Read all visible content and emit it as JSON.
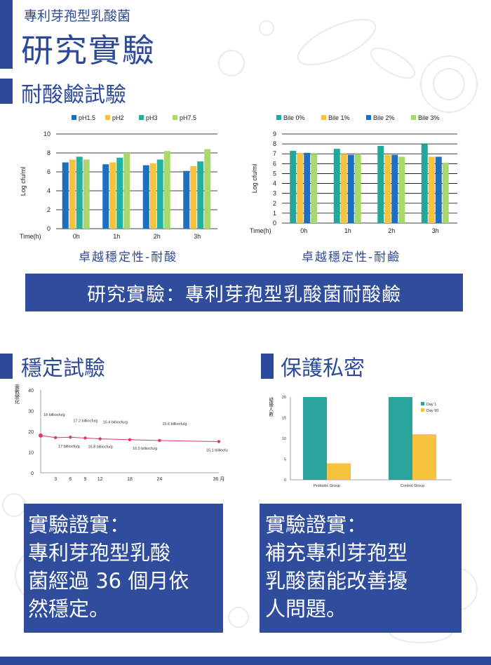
{
  "header": {
    "subtitle": "專利芽孢型乳酸菌",
    "title": "研究實驗"
  },
  "section_acid": {
    "heading": "耐酸鹼試驗",
    "caption_acid": "卓越穩定性-耐酸",
    "caption_bile": "卓越穩定性-耐鹼",
    "banner": "研究實驗：專利芽孢型乳酸菌耐酸鹼"
  },
  "section_stability": {
    "heading": "穩定試驗",
    "proof_title": "實驗證實：",
    "proof_lines": [
      "專利芽孢型乳酸",
      "菌經過 36 個月依",
      "然穩定。"
    ]
  },
  "section_privacy": {
    "heading": "保護私密",
    "proof_title": "實驗證實：",
    "proof_lines": [
      "補充專利芽孢型",
      "乳酸菌能改善擾",
      "人問題。"
    ]
  },
  "colors": {
    "brand_blue": "#2c4a99",
    "ph15": "#1f6fc0",
    "ph2": "#f5c242",
    "ph3": "#22b0a0",
    "ph75": "#a8d86e",
    "stability_line": "#e0395a",
    "day1": "#2aa39a",
    "day90": "#f7c23e"
  },
  "chart_data": [
    {
      "type": "bar",
      "ylabel": "Log cfu/ml",
      "xlabel": "Time(h)",
      "categories": [
        "0h",
        "1h",
        "2h",
        "3h"
      ],
      "ylim": [
        0,
        10
      ],
      "yticks": [
        0,
        2,
        4,
        6,
        8,
        10
      ],
      "grid": true,
      "legend": "top",
      "series": [
        {
          "name": "pH1.5",
          "values": [
            7.0,
            6.8,
            6.7,
            6.1
          ]
        },
        {
          "name": "pH2",
          "values": [
            7.3,
            7.0,
            6.9,
            6.6
          ]
        },
        {
          "name": "pH3",
          "values": [
            7.6,
            7.5,
            7.3,
            7.1
          ]
        },
        {
          "name": "pH7.5",
          "values": [
            7.3,
            8.0,
            8.2,
            8.4
          ]
        }
      ]
    },
    {
      "type": "bar",
      "ylabel": "Log cfu/ml",
      "xlabel": "Time(h)",
      "categories": [
        "0h",
        "1h",
        "2h",
        "3h"
      ],
      "ylim": [
        0,
        9
      ],
      "yticks": [
        0,
        1,
        2,
        3,
        4,
        5,
        6,
        7,
        8,
        9
      ],
      "grid": true,
      "legend": "top",
      "series": [
        {
          "name": "Bile 0%",
          "values": [
            7.3,
            7.5,
            7.8,
            8.0
          ]
        },
        {
          "name": "Bile 1%",
          "values": [
            7.1,
            7.0,
            6.9,
            6.7
          ]
        },
        {
          "name": "Bile 2%",
          "values": [
            7.1,
            6.9,
            6.9,
            6.7
          ]
        },
        {
          "name": "Bile 3%",
          "values": [
            7.0,
            7.0,
            6.7,
            6.1
          ]
        }
      ]
    },
    {
      "type": "line",
      "ylabel": "菌數變化",
      "x_unit": "月",
      "ylim": [
        0,
        40
      ],
      "yticks": [
        0,
        10,
        20,
        30,
        40
      ],
      "xticks": [
        3,
        6,
        9,
        12,
        18,
        24,
        36
      ],
      "x": [
        0,
        3,
        6,
        9,
        12,
        18,
        24,
        36
      ],
      "values": [
        18,
        17.0,
        17.2,
        16.8,
        16.4,
        16.0,
        15.6,
        15.1
      ],
      "labels": [
        "18 billiocfu/g",
        "17 billiocfu/g",
        "17.2 billiocfu/g",
        "16.8 billiocfu/g",
        "16.4 billiocfu/g",
        "16.0 billiocfu/g",
        "15.6 billiocfu/g",
        "15.1 billiocfu/g"
      ]
    },
    {
      "type": "bar",
      "ylabel": "疑擾人數",
      "categories": [
        "Probiotic Group",
        "Control Group"
      ],
      "ylim": [
        0,
        20
      ],
      "yticks": [
        0,
        5,
        10,
        15,
        20
      ],
      "legend": "top-right",
      "series": [
        {
          "name": "Day 1",
          "values": [
            20,
            20
          ]
        },
        {
          "name": "Day 90",
          "values": [
            4,
            11
          ]
        }
      ]
    }
  ]
}
